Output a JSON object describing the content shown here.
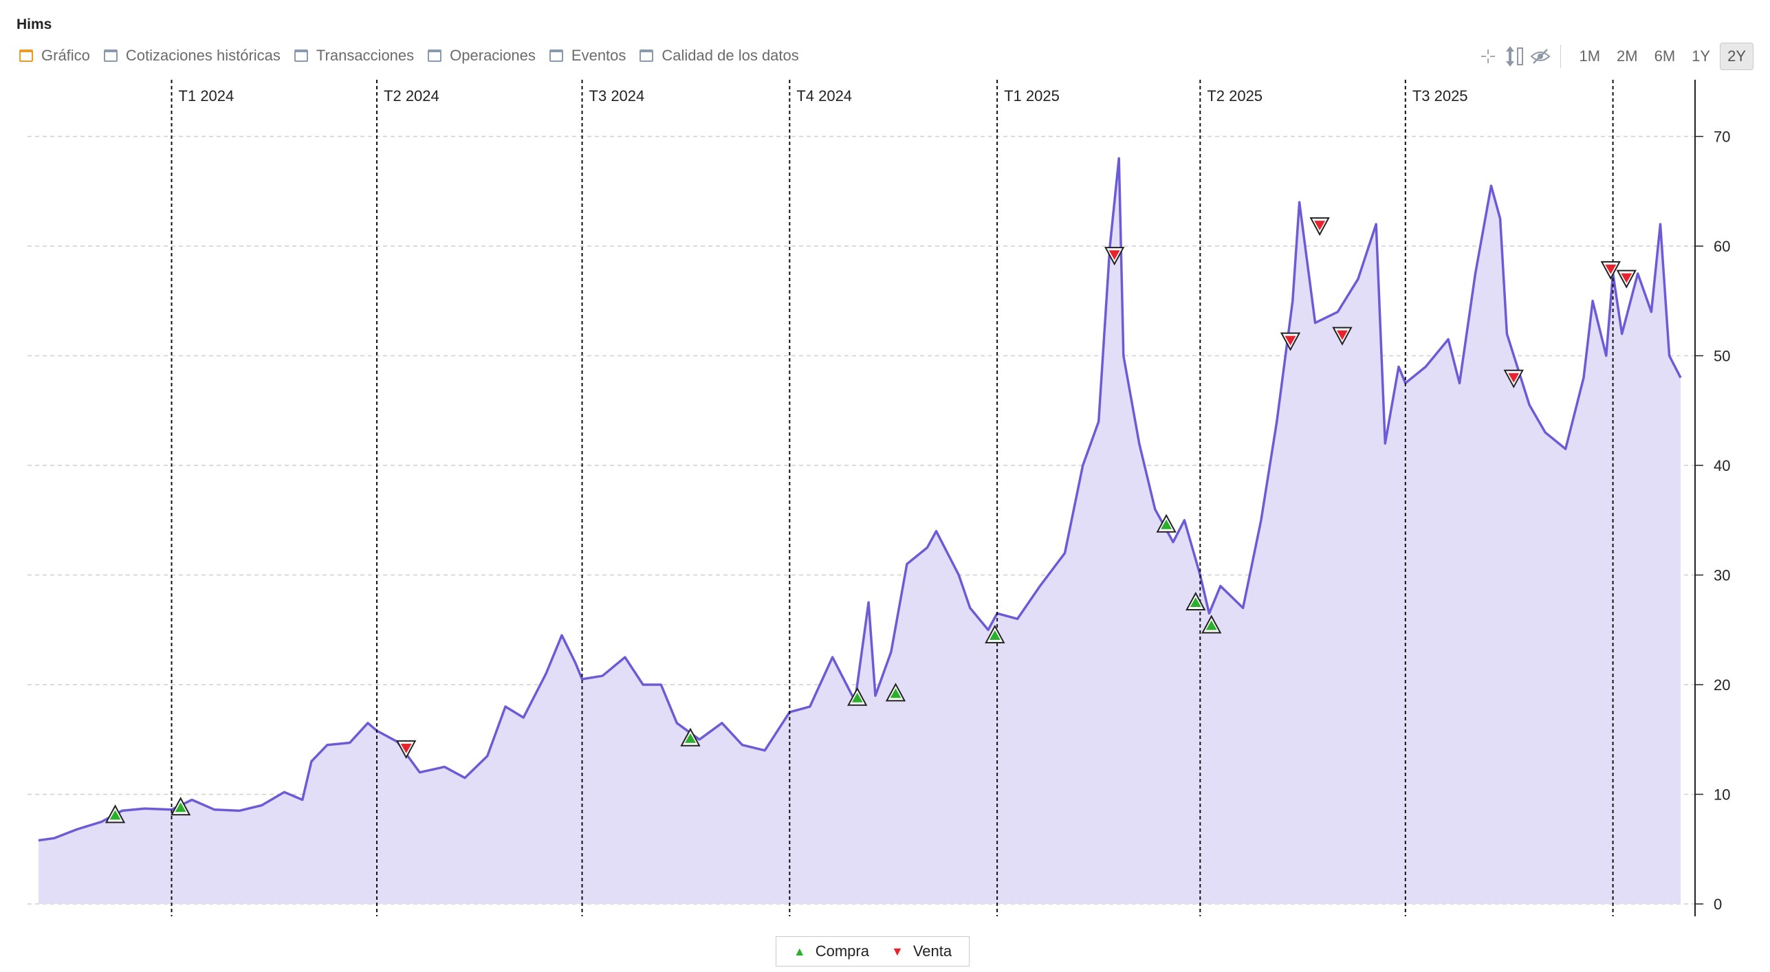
{
  "window": {
    "title": "Hims"
  },
  "tabs": [
    {
      "label": "Gráfico",
      "active": true
    },
    {
      "label": "Cotizaciones históricas",
      "active": false
    },
    {
      "label": "Transacciones",
      "active": false
    },
    {
      "label": "Operaciones",
      "active": false
    },
    {
      "label": "Eventos",
      "active": false
    },
    {
      "label": "Calidad de los datos",
      "active": false
    }
  ],
  "toolbar": {
    "icons": [
      "crosshair-icon",
      "vertical-scale-icon",
      "hide-icon"
    ],
    "ranges": [
      {
        "label": "1M",
        "active": false
      },
      {
        "label": "2M",
        "active": false
      },
      {
        "label": "6M",
        "active": false
      },
      {
        "label": "1Y",
        "active": false
      },
      {
        "label": "2Y",
        "active": true
      }
    ]
  },
  "legend": {
    "buy": "Compra",
    "sell": "Venta"
  },
  "colors": {
    "line": "#6b5bd6",
    "fill": "#e3def7",
    "buy": "#2bb02b",
    "sell": "#e8232d",
    "grid": "#cfcfcf"
  },
  "chart_data": {
    "type": "area",
    "title": "",
    "xlabel": "",
    "ylabel": "",
    "ylim": [
      0,
      75
    ],
    "yticks": [
      0,
      10,
      20,
      30,
      40,
      50,
      60,
      70
    ],
    "xlim": [
      "2023-11-03",
      "2025-10-31"
    ],
    "grid": true,
    "legend_position": "bottom-center",
    "quarters": [
      {
        "label": "T1 2024",
        "date": "2024-01-01"
      },
      {
        "label": "T2 2024",
        "date": "2024-04-01"
      },
      {
        "label": "T3 2024",
        "date": "2024-07-01"
      },
      {
        "label": "T4 2024",
        "date": "2024-10-01"
      },
      {
        "label": "T1 2025",
        "date": "2025-01-01"
      },
      {
        "label": "T2 2025",
        "date": "2025-04-01"
      },
      {
        "label": "T3 2025",
        "date": "2025-07-01"
      },
      {
        "label": "",
        "date": "2025-10-01"
      }
    ],
    "series": [
      {
        "points": [
          [
            "2023-11-03",
            5.8
          ],
          [
            "2023-11-10",
            6.0
          ],
          [
            "2023-11-20",
            6.8
          ],
          [
            "2023-12-01",
            7.5
          ],
          [
            "2023-12-10",
            8.5
          ],
          [
            "2023-12-20",
            8.7
          ],
          [
            "2024-01-01",
            8.6
          ],
          [
            "2024-01-10",
            9.5
          ],
          [
            "2024-01-20",
            8.6
          ],
          [
            "2024-01-31",
            8.5
          ],
          [
            "2024-02-10",
            9.0
          ],
          [
            "2024-02-20",
            10.2
          ],
          [
            "2024-02-28",
            9.5
          ],
          [
            "2024-03-03",
            13.0
          ],
          [
            "2024-03-10",
            14.5
          ],
          [
            "2024-03-20",
            14.7
          ],
          [
            "2024-03-28",
            16.5
          ],
          [
            "2024-04-01",
            15.8
          ],
          [
            "2024-04-10",
            14.8
          ],
          [
            "2024-04-20",
            12.0
          ],
          [
            "2024-05-01",
            12.5
          ],
          [
            "2024-05-10",
            11.5
          ],
          [
            "2024-05-20",
            13.5
          ],
          [
            "2024-05-28",
            18.0
          ],
          [
            "2024-06-05",
            17.0
          ],
          [
            "2024-06-15",
            21.0
          ],
          [
            "2024-06-22",
            24.5
          ],
          [
            "2024-06-28",
            22.0
          ],
          [
            "2024-07-01",
            20.5
          ],
          [
            "2024-07-10",
            20.8
          ],
          [
            "2024-07-20",
            22.5
          ],
          [
            "2024-07-28",
            20.0
          ],
          [
            "2024-08-05",
            20.0
          ],
          [
            "2024-08-12",
            16.5
          ],
          [
            "2024-08-22",
            15.0
          ],
          [
            "2024-09-01",
            16.5
          ],
          [
            "2024-09-10",
            14.5
          ],
          [
            "2024-09-20",
            14.0
          ],
          [
            "2024-10-01",
            17.5
          ],
          [
            "2024-10-10",
            18.0
          ],
          [
            "2024-10-20",
            22.5
          ],
          [
            "2024-10-30",
            18.5
          ],
          [
            "2024-11-05",
            27.5
          ],
          [
            "2024-11-08",
            19.0
          ],
          [
            "2024-11-15",
            23.0
          ],
          [
            "2024-11-22",
            31.0
          ],
          [
            "2024-12-01",
            32.5
          ],
          [
            "2024-12-05",
            34.0
          ],
          [
            "2024-12-15",
            30.0
          ],
          [
            "2024-12-20",
            27.0
          ],
          [
            "2024-12-28",
            25.0
          ],
          [
            "2025-01-01",
            26.5
          ],
          [
            "2025-01-10",
            26.0
          ],
          [
            "2025-01-20",
            29.0
          ],
          [
            "2025-01-31",
            32.0
          ],
          [
            "2025-02-08",
            40.0
          ],
          [
            "2025-02-15",
            44.0
          ],
          [
            "2025-02-20",
            60.0
          ],
          [
            "2025-02-24",
            68.0
          ],
          [
            "2025-02-26",
            50.0
          ],
          [
            "2025-03-05",
            42.0
          ],
          [
            "2025-03-12",
            36.0
          ],
          [
            "2025-03-20",
            33.0
          ],
          [
            "2025-03-25",
            35.0
          ],
          [
            "2025-04-01",
            30.0
          ],
          [
            "2025-04-05",
            26.5
          ],
          [
            "2025-04-10",
            29.0
          ],
          [
            "2025-04-20",
            27.0
          ],
          [
            "2025-04-28",
            35.0
          ],
          [
            "2025-05-05",
            44.0
          ],
          [
            "2025-05-12",
            55.0
          ],
          [
            "2025-05-15",
            64.0
          ],
          [
            "2025-05-22",
            53.0
          ],
          [
            "2025-06-01",
            54.0
          ],
          [
            "2025-06-10",
            57.0
          ],
          [
            "2025-06-18",
            62.0
          ],
          [
            "2025-06-22",
            42.0
          ],
          [
            "2025-06-28",
            49.0
          ],
          [
            "2025-07-01",
            47.5
          ],
          [
            "2025-07-10",
            49.0
          ],
          [
            "2025-07-20",
            51.5
          ],
          [
            "2025-07-25",
            47.5
          ],
          [
            "2025-08-01",
            57.5
          ],
          [
            "2025-08-08",
            65.5
          ],
          [
            "2025-08-12",
            62.5
          ],
          [
            "2025-08-15",
            52.0
          ],
          [
            "2025-08-25",
            45.5
          ],
          [
            "2025-09-01",
            43.0
          ],
          [
            "2025-09-10",
            41.5
          ],
          [
            "2025-09-18",
            48.0
          ],
          [
            "2025-09-22",
            55.0
          ],
          [
            "2025-09-28",
            50.0
          ],
          [
            "2025-10-01",
            57.5
          ],
          [
            "2025-10-05",
            52.0
          ],
          [
            "2025-10-12",
            57.5
          ],
          [
            "2025-10-18",
            54.0
          ],
          [
            "2025-10-22",
            62.0
          ],
          [
            "2025-10-26",
            50.0
          ],
          [
            "2025-10-31",
            48.0
          ]
        ]
      }
    ],
    "markers": [
      {
        "type": "buy",
        "date": "2023-12-07",
        "value": 8.0
      },
      {
        "type": "buy",
        "date": "2024-01-05",
        "value": 8.7
      },
      {
        "type": "sell",
        "date": "2024-04-14",
        "value": 14.3
      },
      {
        "type": "buy",
        "date": "2024-08-18",
        "value": 15.0
      },
      {
        "type": "buy",
        "date": "2024-10-31",
        "value": 18.7
      },
      {
        "type": "buy",
        "date": "2024-11-17",
        "value": 19.1
      },
      {
        "type": "buy",
        "date": "2024-12-31",
        "value": 24.4
      },
      {
        "type": "sell",
        "date": "2025-02-22",
        "value": 59.3
      },
      {
        "type": "buy",
        "date": "2025-03-17",
        "value": 34.5
      },
      {
        "type": "buy",
        "date": "2025-03-30",
        "value": 27.4
      },
      {
        "type": "buy",
        "date": "2025-04-06",
        "value": 25.3
      },
      {
        "type": "sell",
        "date": "2025-05-11",
        "value": 51.5
      },
      {
        "type": "sell",
        "date": "2025-05-24",
        "value": 62.0
      },
      {
        "type": "sell",
        "date": "2025-06-03",
        "value": 52.0
      },
      {
        "type": "sell",
        "date": "2025-08-18",
        "value": 48.1
      },
      {
        "type": "sell",
        "date": "2025-09-30",
        "value": 58.0
      },
      {
        "type": "sell",
        "date": "2025-10-07",
        "value": 57.2
      }
    ]
  }
}
